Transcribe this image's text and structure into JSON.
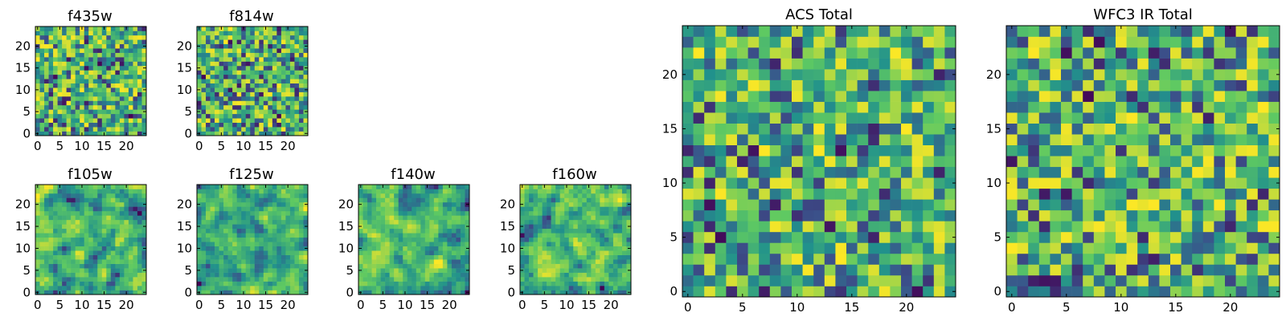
{
  "colormap": [
    "#440154",
    "#3b528b",
    "#21918c",
    "#5ec962",
    "#fde725"
  ],
  "chart_data": [
    {
      "type": "heatmap",
      "title": "f435w",
      "grid_size": 25,
      "value_range": [
        0,
        1
      ],
      "seed": 11,
      "smoothness": 0,
      "xticks": [
        0,
        5,
        10,
        15,
        20
      ],
      "yticks": [
        0,
        5,
        10,
        15,
        20
      ],
      "colormap": "viridis"
    },
    {
      "type": "heatmap",
      "title": "f814w",
      "grid_size": 25,
      "value_range": [
        0,
        1
      ],
      "seed": 23,
      "smoothness": 0,
      "xticks": [
        0,
        5,
        10,
        15,
        20
      ],
      "yticks": [
        0,
        5,
        10,
        15,
        20
      ],
      "colormap": "viridis"
    },
    {
      "type": "heatmap",
      "title": "f105w",
      "grid_size": 25,
      "value_range": [
        0,
        1
      ],
      "seed": 37,
      "smoothness": 1,
      "xticks": [
        0,
        5,
        10,
        15,
        20
      ],
      "yticks": [
        0,
        5,
        10,
        15,
        20
      ],
      "colormap": "viridis"
    },
    {
      "type": "heatmap",
      "title": "f125w",
      "grid_size": 25,
      "value_range": [
        0,
        1
      ],
      "seed": 41,
      "smoothness": 1,
      "xticks": [
        0,
        5,
        10,
        15,
        20
      ],
      "yticks": [
        0,
        5,
        10,
        15,
        20
      ],
      "colormap": "viridis"
    },
    {
      "type": "heatmap",
      "title": "f140w",
      "grid_size": 25,
      "value_range": [
        0,
        1
      ],
      "seed": 53,
      "smoothness": 1,
      "xticks": [
        0,
        5,
        10,
        15,
        20
      ],
      "yticks": [
        0,
        5,
        10,
        15,
        20
      ],
      "colormap": "viridis"
    },
    {
      "type": "heatmap",
      "title": "f160w",
      "grid_size": 25,
      "value_range": [
        0,
        1
      ],
      "seed": 67,
      "smoothness": 1,
      "xticks": [
        0,
        5,
        10,
        15,
        20
      ],
      "yticks": [
        0,
        5,
        10,
        15,
        20
      ],
      "colormap": "viridis"
    },
    {
      "type": "heatmap",
      "title": "ACS Total",
      "grid_size": 25,
      "value_range": [
        0,
        1
      ],
      "seed": 79,
      "smoothness": 0,
      "xticks": [
        0,
        5,
        10,
        15,
        20
      ],
      "yticks": [
        0,
        5,
        10,
        15,
        20
      ],
      "colormap": "viridis"
    },
    {
      "type": "heatmap",
      "title": "WFC3 IR Total",
      "grid_size": 25,
      "value_range": [
        0,
        1
      ],
      "seed": 97,
      "smoothness": 0,
      "xticks": [
        0,
        5,
        10,
        15,
        20
      ],
      "yticks": [
        0,
        5,
        10,
        15,
        20
      ],
      "colormap": "viridis"
    }
  ]
}
